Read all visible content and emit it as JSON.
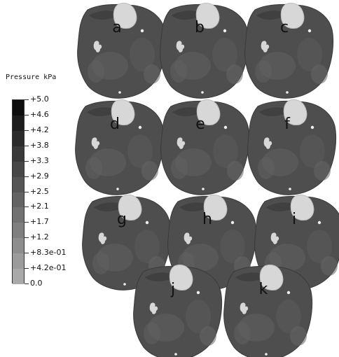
{
  "legend": {
    "title": "Pressure kPa",
    "ticks": [
      "+5.0",
      "+4.6",
      "+4.2",
      "+3.8",
      "+3.3",
      "+2.9",
      "+2.5",
      "+2.1",
      "+1.7",
      "+1.2",
      "+8.3e-01",
      "+4.2e-01",
      "0.0"
    ],
    "colors": [
      "#0e0e0e",
      "#1d1d1d",
      "#2b2b2b",
      "#393939",
      "#474747",
      "#555555",
      "#636363",
      "#717171",
      "#7f7f7f",
      "#8d8d8d",
      "#9b9b9b",
      "#a9a9a9",
      "#b5b5b5"
    ]
  },
  "panels": [
    {
      "label": "a"
    },
    {
      "label": "b"
    },
    {
      "label": "c"
    },
    {
      "label": "d"
    },
    {
      "label": "e"
    },
    {
      "label": "f"
    },
    {
      "label": "g"
    },
    {
      "label": "h"
    },
    {
      "label": "i"
    },
    {
      "label": "j"
    },
    {
      "label": "k"
    }
  ]
}
